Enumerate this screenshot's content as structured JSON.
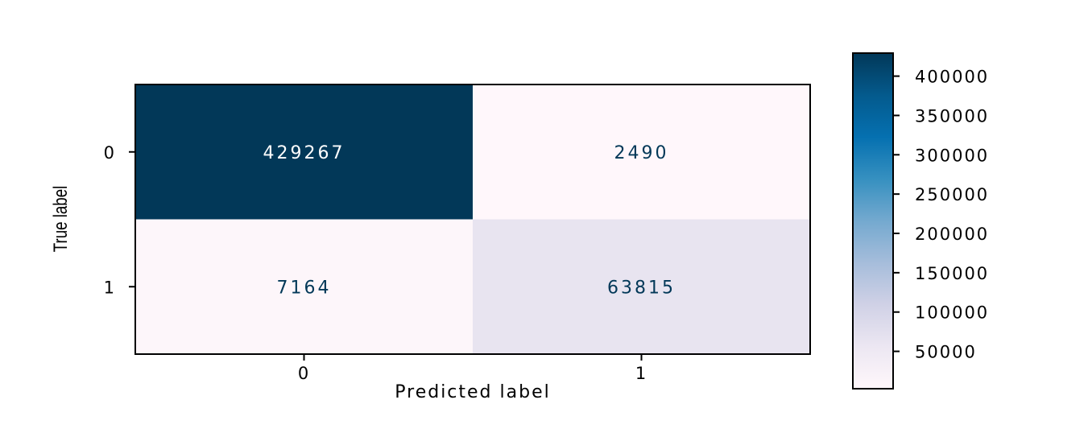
{
  "chart_data": {
    "type": "heatmap",
    "title": "",
    "xlabel": "Predicted label",
    "ylabel": "True label",
    "x_categories": [
      "0",
      "1"
    ],
    "y_categories": [
      "0",
      "1"
    ],
    "values": [
      [
        429267,
        2490
      ],
      [
        7164,
        63815
      ]
    ],
    "colormap": "PuBu",
    "colorbar": {
      "ticks": [
        400000,
        350000,
        300000,
        250000,
        200000,
        150000,
        100000,
        50000
      ],
      "range": [
        2490,
        429267
      ]
    },
    "colors": {
      "cmap_low": "#fff7fb",
      "cmap_mid": "#a6bddb",
      "cmap_high": "#023858",
      "text_on_dark": "#ffffff",
      "text_on_light": "#023858"
    }
  }
}
